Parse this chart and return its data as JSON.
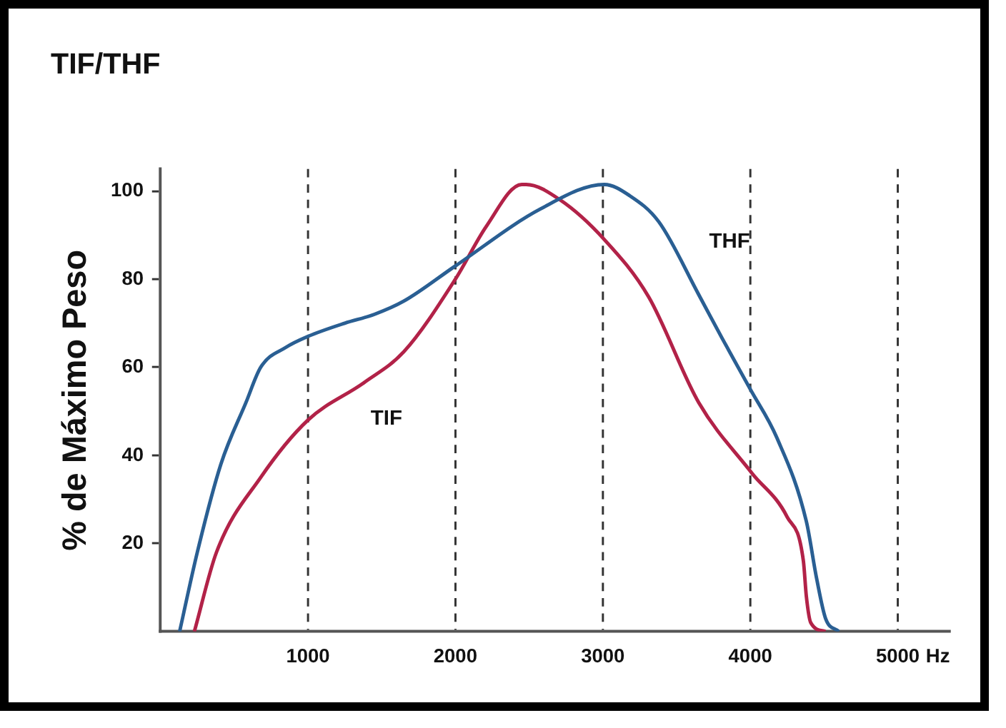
{
  "chart_data": {
    "type": "line",
    "title": "TIF/THF",
    "xlabel": "Hz",
    "ylabel": "% de Máximo Peso",
    "xlim": [
      0,
      5350
    ],
    "xticks": [
      1000,
      2000,
      3000,
      4000,
      5000
    ],
    "ylim": [
      0,
      105
    ],
    "yticks": [
      20,
      40,
      60,
      80,
      100
    ],
    "grid": "x",
    "line_style": "solid",
    "marker": "none",
    "legend": false,
    "series": [
      {
        "name": "THF",
        "color": "#2a5f93",
        "x": [
          130,
          250,
          410,
          580,
          680,
          850,
          1000,
          1250,
          1450,
          1650,
          2000,
          2580,
          3010,
          3180,
          3380,
          3650,
          3810,
          4000,
          4180,
          4380,
          4450,
          4510,
          4600
        ],
        "values": [
          0,
          18,
          38,
          52,
          60,
          64.5,
          67,
          70,
          72,
          75,
          83,
          96,
          101.5,
          99,
          93,
          76.5,
          66.5,
          55,
          44,
          25,
          12,
          3,
          0
        ]
      },
      {
        "name": "TIF",
        "color": "#b22248",
        "x": [
          230,
          380,
          680,
          1000,
          1380,
          1650,
          2000,
          2210,
          2450,
          2480,
          2710,
          3010,
          3310,
          3650,
          4010,
          4250,
          4360,
          4380,
          4410,
          4510
        ],
        "values": [
          0,
          18,
          35,
          48,
          56.5,
          63.5,
          80,
          92,
          101.5,
          101.5,
          98,
          89,
          76,
          52,
          36,
          26,
          16,
          8,
          2,
          0
        ]
      }
    ]
  }
}
